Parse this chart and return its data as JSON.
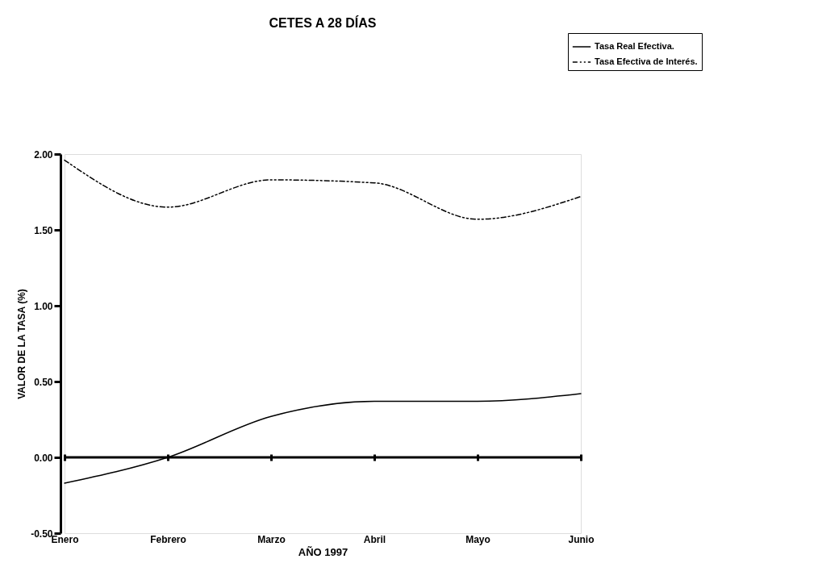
{
  "chart_data": {
    "type": "line",
    "title": "CETES A 28 DÍAS",
    "xlabel": "AÑO 1997",
    "ylabel": "VALOR DE LA TASA (%)",
    "categories": [
      "Enero",
      "Febrero",
      "Marzo",
      "Abril",
      "Mayo",
      "Junio"
    ],
    "series": [
      {
        "name": "Tasa Real Efectiva.",
        "color": "#000000",
        "line_style": "solid",
        "values": [
          -0.17,
          0.0,
          0.27,
          0.37,
          0.37,
          0.42
        ]
      },
      {
        "name": "Tasa Efectiva de Interés.",
        "color": "#000000",
        "line_style": "dashdot",
        "values": [
          1.96,
          1.65,
          1.83,
          1.81,
          1.57,
          1.72
        ]
      }
    ],
    "ylim": [
      -0.5,
      2.0
    ],
    "yticks": [
      {
        "value": -0.5,
        "label": "-0.50"
      },
      {
        "value": 0.0,
        "label": "0.00"
      },
      {
        "value": 0.5,
        "label": "0.50"
      },
      {
        "value": 1.0,
        "label": "1.00"
      },
      {
        "value": 1.5,
        "label": "1.50"
      },
      {
        "value": 2.0,
        "label": "2.00"
      }
    ],
    "ref_lines": [
      {
        "axis": "y",
        "value": 0,
        "color": "#000000",
        "line_style": "solid"
      }
    ],
    "grid": false,
    "legend": "top right",
    "marker": "none"
  }
}
